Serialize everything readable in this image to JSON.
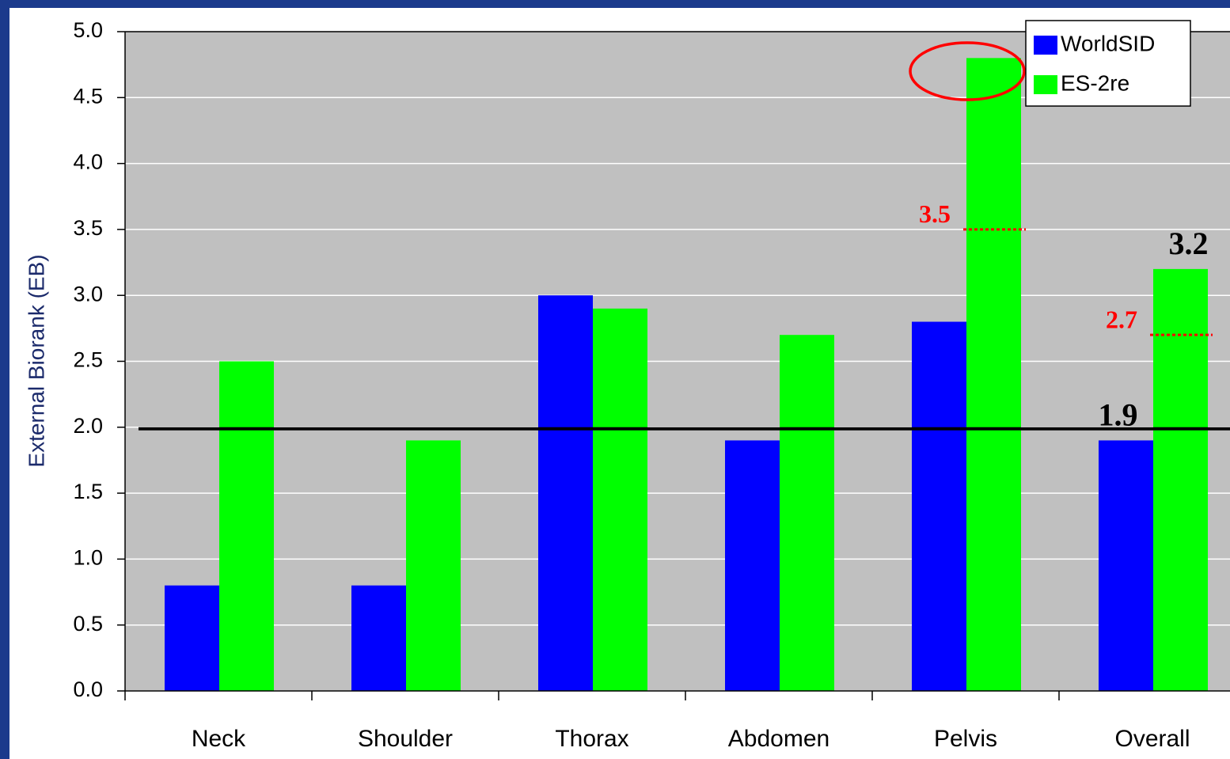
{
  "chart_data": {
    "type": "bar",
    "y_label": "External Biorank (EB)",
    "categories": [
      "Neck",
      "Shoulder",
      "Thorax",
      "Abdomen",
      "Pelvis",
      "Overall"
    ],
    "series": [
      {
        "name": "WorldSID",
        "color": "#0000ff",
        "values": [
          0.8,
          0.8,
          3.0,
          1.9,
          2.8,
          1.9
        ],
        "value_labels": [
          null,
          null,
          null,
          null,
          null,
          "1.9"
        ]
      },
      {
        "name": "ES-2re",
        "color": "#00ff00",
        "values": [
          2.5,
          1.9,
          2.9,
          2.7,
          4.8,
          3.2
        ],
        "value_labels": [
          null,
          null,
          null,
          null,
          null,
          "3.2"
        ]
      }
    ],
    "ylim": [
      0,
      5
    ],
    "yticks": [
      {
        "value": 0,
        "label": "0.0"
      },
      {
        "value": 0.5,
        "label": "0.5"
      },
      {
        "value": 1,
        "label": "1.0"
      },
      {
        "value": 1.5,
        "label": "1.5"
      },
      {
        "value": 2,
        "label": "2.0"
      },
      {
        "value": 2.5,
        "label": "2.5"
      },
      {
        "value": 3,
        "label": "3.0"
      },
      {
        "value": 3.5,
        "label": "3.5"
      },
      {
        "value": 4,
        "label": "4.0"
      },
      {
        "value": 4.5,
        "label": "4.5"
      },
      {
        "value": 5,
        "label": "5.0"
      }
    ],
    "grid": true,
    "legend": "top-right",
    "reference_value": 2,
    "markers": [
      {
        "label": "3.5",
        "value": 3.5,
        "color": "#ff0000"
      },
      {
        "label": "2.7",
        "value": 2.7,
        "color": "#ff0000"
      }
    ]
  }
}
